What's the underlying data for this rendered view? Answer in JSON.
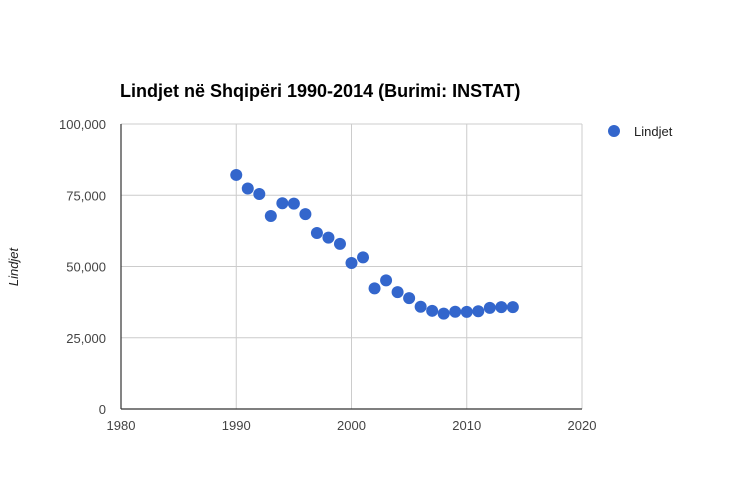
{
  "chart_data": {
    "type": "scatter",
    "title": "Lindjet në Shqipëri 1990-2014 (Burimi: INSTAT)",
    "xlabel": "",
    "ylabel": "Lindjet",
    "xlim": [
      1980,
      2020
    ],
    "ylim": [
      0,
      100000
    ],
    "x_ticks": [
      "1980",
      "1990",
      "2000",
      "2010",
      "2020"
    ],
    "y_ticks": [
      "0",
      "25,000",
      "50,000",
      "75,000",
      "100,000"
    ],
    "grid": true,
    "legend_position": "right",
    "series": [
      {
        "name": "Lindjet",
        "color": "#3366cc",
        "x": [
          1990,
          1991,
          1992,
          1993,
          1994,
          1995,
          1996,
          1997,
          1998,
          1999,
          2000,
          2001,
          2002,
          2003,
          2004,
          2005,
          2006,
          2007,
          2008,
          2009,
          2010,
          2011,
          2012,
          2013,
          2014
        ],
        "y": [
          82125,
          77360,
          75425,
          67730,
          72180,
          72080,
          68360,
          61740,
          60140,
          57950,
          51240,
          53210,
          42330,
          45150,
          40990,
          38900,
          35890,
          34450,
          33450,
          34110,
          34070,
          34280,
          35470,
          35750,
          35760
        ]
      }
    ]
  }
}
